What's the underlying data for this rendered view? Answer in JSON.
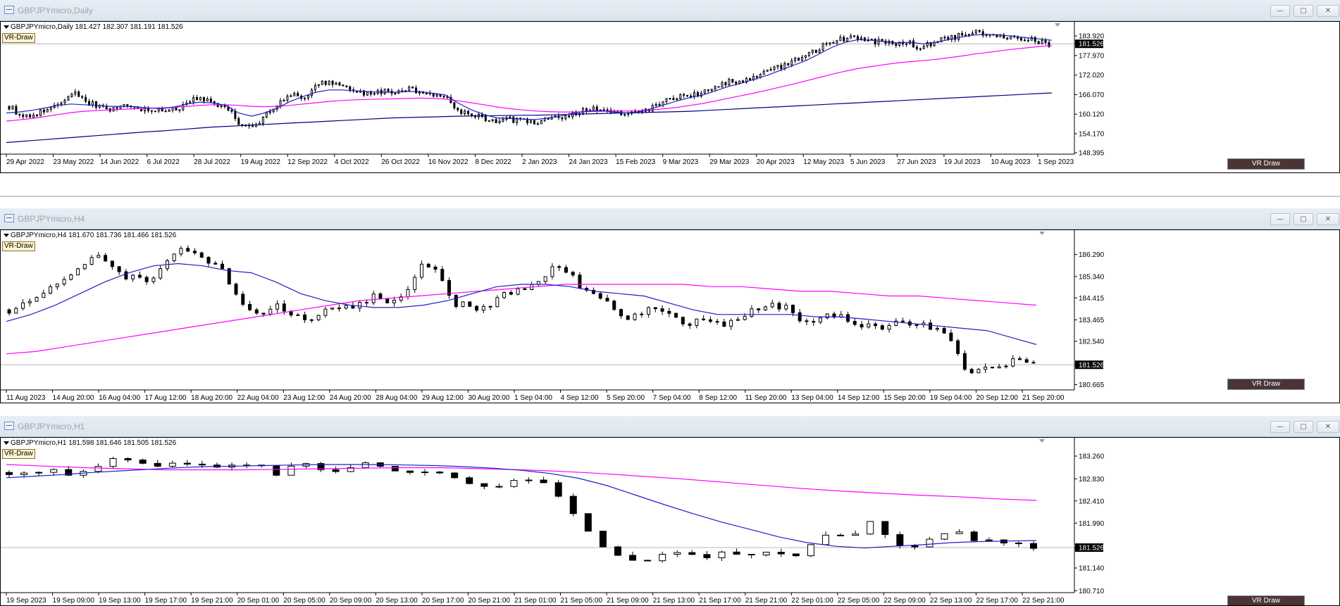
{
  "colors": {
    "ma_fast": "#1f1fcc",
    "ma_mid": "#ff00ff",
    "ma_slow": "#000080",
    "bull_candle": "#ffffff",
    "bear_candle": "#000000",
    "button_bg": "#4b3434"
  },
  "window_buttons": {
    "minimize": "—",
    "maximize": "▢",
    "close": "✕"
  },
  "windows": [
    {
      "title": "GBPJPYmicro,Daily",
      "info": "GBPJPYmicro,Daily  181.427 182.307 181.191 181.526",
      "indicator_label": "VR-Draw",
      "button_label": "VR Draw",
      "price_labels": [
        "183.920",
        "181.526",
        "177.970",
        "172.020",
        "166.070",
        "160.120",
        "154.170",
        "148.395"
      ],
      "current_price": "181.526",
      "time_labels": [
        "29 Apr 2022",
        "23 May 2022",
        "14 Jun 2022",
        "6 Jul 2022",
        "28 Jul 2022",
        "19 Aug 2022",
        "12 Sep 2022",
        "4 Oct 2022",
        "26 Oct 2022",
        "16 Nov 2022",
        "8 Dec 2022",
        "2 Jan 2023",
        "24 Jan 2023",
        "15 Feb 2023",
        "9 Mar 2023",
        "29 Mar 2023",
        "20 Apr 2023",
        "12 May 2023",
        "5 Jun 2023",
        "27 Jun 2023",
        "19 Jul 2023",
        "10 Aug 2023",
        "1 Sep 2023"
      ],
      "chart_data": {
        "type": "candlestick",
        "x_dates": [
          "29 Apr 2022",
          "23 May 2022",
          "14 Jun 2022",
          "6 Jul 2022",
          "28 Jul 2022",
          "19 Aug 2022",
          "12 Sep 2022",
          "4 Oct 2022",
          "26 Oct 2022",
          "16 Nov 2022",
          "8 Dec 2022",
          "2 Jan 2023",
          "24 Jan 2023",
          "15 Feb 2023",
          "9 Mar 2023",
          "29 Mar 2023",
          "20 Apr 2023",
          "12 May 2023",
          "5 Jun 2023",
          "27 Jun 2023",
          "19 Jul 2023",
          "10 Aug 2023",
          "1 Sep 2023"
        ],
        "ylim": [
          148.395,
          186.5
        ],
        "close_path": [
          162.5,
          159.5,
          160.0,
          161.5,
          163.0,
          167.0,
          164.0,
          162.5,
          161.5,
          163.0,
          162.0,
          161.5,
          161.0,
          161.5,
          164.0,
          165.0,
          163.0,
          162.0,
          157.0,
          156.0,
          160.0,
          163.5,
          166.0,
          165.0,
          169.0,
          170.0,
          168.5,
          167.5,
          166.0,
          167.0,
          166.5,
          168.0,
          167.0,
          166.5,
          165.5,
          161.0,
          160.0,
          159.0,
          157.5,
          158.5,
          158.0,
          157.5,
          158.5,
          159.0,
          160.5,
          161.5,
          162.0,
          161.0,
          160.0,
          160.5,
          162.0,
          164.0,
          165.0,
          166.0,
          166.5,
          168.0,
          170.0,
          170.5,
          171.5,
          173.0,
          174.5,
          176.5,
          178.0,
          180.0,
          182.0,
          183.0,
          183.5,
          182.5,
          182.0,
          181.5,
          182.0,
          180.0,
          182.0,
          183.0,
          184.0,
          185.0,
          184.5,
          184.0,
          183.5,
          183.0,
          182.5,
          181.5
        ],
        "ma_fast": [
          160.5,
          160.8,
          161.3,
          162.0,
          162.8,
          163.2,
          163.0,
          162.8,
          162.5,
          162.5,
          162.4,
          162.0,
          161.8,
          162.3,
          163.2,
          163.8,
          163.5,
          162.8,
          160.5,
          159.5,
          160.5,
          162.0,
          164.0,
          165.5,
          166.8,
          167.5,
          167.5,
          167.2,
          167.0,
          166.8,
          166.8,
          167.0,
          167.0,
          166.5,
          166.0,
          163.5,
          161.5,
          160.0,
          159.0,
          158.8,
          158.6,
          158.5,
          159.0,
          159.6,
          160.5,
          161.0,
          161.2,
          160.8,
          160.5,
          160.8,
          161.8,
          163.0,
          164.2,
          165.2,
          166.0,
          167.3,
          168.6,
          169.6,
          170.8,
          172.0,
          173.5,
          175.0,
          176.5,
          178.5,
          180.5,
          182.0,
          182.8,
          182.6,
          182.2,
          181.8,
          182.0,
          181.5,
          182.0,
          182.8,
          183.6,
          184.2,
          184.4,
          184.2,
          183.8,
          183.4,
          183.0,
          182.6
        ],
        "ma_mid": [
          158.0,
          158.4,
          158.8,
          159.4,
          160.0,
          160.6,
          161.0,
          161.2,
          161.4,
          161.6,
          161.8,
          161.9,
          162.0,
          162.2,
          162.5,
          162.8,
          163.0,
          163.0,
          162.8,
          162.5,
          162.4,
          162.5,
          162.8,
          163.2,
          163.6,
          164.0,
          164.3,
          164.5,
          164.6,
          164.7,
          164.8,
          164.9,
          165.0,
          164.9,
          164.7,
          164.2,
          163.6,
          163.0,
          162.3,
          161.8,
          161.4,
          161.1,
          160.9,
          160.8,
          160.8,
          160.9,
          161.0,
          161.1,
          161.1,
          161.2,
          161.4,
          161.8,
          162.2,
          162.8,
          163.4,
          164.2,
          165.0,
          165.8,
          166.6,
          167.5,
          168.4,
          169.3,
          170.3,
          171.3,
          172.3,
          173.2,
          174.0,
          174.6,
          175.2,
          175.7,
          176.1,
          176.4,
          176.8,
          177.3,
          177.8,
          178.4,
          178.9,
          179.4,
          179.9,
          180.3,
          180.7,
          181.0
        ],
        "ma_slow": [
          151.5,
          151.8,
          152.1,
          152.4,
          152.7,
          153.0,
          153.3,
          153.6,
          153.9,
          154.2,
          154.5,
          154.8,
          155.0,
          155.3,
          155.6,
          155.9,
          156.2,
          156.4,
          156.6,
          156.8,
          157.0,
          157.2,
          157.4,
          157.6,
          157.8,
          158.0,
          158.2,
          158.4,
          158.6,
          158.8,
          159.0,
          159.1,
          159.2,
          159.3,
          159.4,
          159.5,
          159.6,
          159.6,
          159.7,
          159.7,
          159.8,
          159.8,
          159.9,
          160.0,
          160.1,
          160.2,
          160.3,
          160.4,
          160.5,
          160.6,
          160.7,
          160.8,
          160.9,
          161.0,
          161.2,
          161.4,
          161.6,
          161.8,
          162.0,
          162.2,
          162.4,
          162.6,
          162.8,
          163.0,
          163.2,
          163.4,
          163.6,
          163.8,
          164.0,
          164.2,
          164.4,
          164.6,
          164.8,
          165.0,
          165.2,
          165.4,
          165.6,
          165.8,
          166.0,
          166.2,
          166.4,
          166.6
        ]
      }
    },
    {
      "title": "GBPJPYmicro,H4",
      "info": "GBPJPYmicro,H4  181.670 181.736 181.466 181.526",
      "indicator_label": "VR-Draw",
      "button_label": "VR Draw",
      "price_labels": [
        "186.290",
        "185.340",
        "184.415",
        "183.465",
        "182.540",
        "181.526",
        "180.665"
      ],
      "current_price": "181.526",
      "time_labels": [
        "11 Aug 2023",
        "14 Aug 20:00",
        "16 Aug 04:00",
        "17 Aug 12:00",
        "18 Aug 20:00",
        "22 Aug 04:00",
        "23 Aug 12:00",
        "24 Aug 20:00",
        "28 Aug 04:00",
        "29 Aug 12:00",
        "30 Aug 20:00",
        "1 Sep 04:00",
        "4 Sep 12:00",
        "5 Sep 20:00",
        "7 Sep 04:00",
        "8 Sep 12:00",
        "11 Sep 20:00",
        "13 Sep 04:00",
        "14 Sep 12:00",
        "15 Sep 20:00",
        "19 Sep 04:00",
        "20 Sep 12:00",
        "21 Sep 20:00"
      ],
      "chart_data": {
        "type": "candlestick",
        "x_dates": [
          "11 Aug 2023",
          "14 Aug 20:00",
          "16 Aug 04:00",
          "17 Aug 12:00",
          "18 Aug 20:00",
          "22 Aug 04:00",
          "23 Aug 12:00",
          "24 Aug 20:00",
          "28 Aug 04:00",
          "29 Aug 12:00",
          "30 Aug 20:00",
          "1 Sep 04:00",
          "4 Sep 12:00",
          "5 Sep 20:00",
          "7 Sep 04:00",
          "8 Sep 12:00",
          "11 Sep 20:00",
          "13 Sep 04:00",
          "14 Sep 12:00",
          "15 Sep 20:00",
          "19 Sep 04:00",
          "20 Sep 12:00",
          "21 Sep 20:00"
        ],
        "ylim": [
          180.5,
          187.1
        ],
        "close_path": [
          183.9,
          184.2,
          184.6,
          185.1,
          185.6,
          186.2,
          186.0,
          185.3,
          185.2,
          185.4,
          186.4,
          186.5,
          186.1,
          185.5,
          184.2,
          183.7,
          184.1,
          183.8,
          183.5,
          183.8,
          184.1,
          184.0,
          184.5,
          184.3,
          184.7,
          186.0,
          185.4,
          184.2,
          184.0,
          184.1,
          184.6,
          184.9,
          185.0,
          185.8,
          185.4,
          184.6,
          184.5,
          183.5,
          183.6,
          184.0,
          183.6,
          183.3,
          183.5,
          183.2,
          183.5,
          184.0,
          184.1,
          184.0,
          183.3,
          183.6,
          183.7,
          183.3,
          183.2,
          183.2,
          183.4,
          183.2,
          183.2,
          182.7,
          181.2,
          181.3,
          181.5,
          181.7,
          181.5
        ],
        "ma_fast": [
          183.4,
          183.7,
          184.1,
          184.6,
          185.1,
          185.5,
          185.8,
          185.9,
          185.8,
          185.6,
          185.5,
          185.1,
          184.6,
          184.3,
          184.1,
          184.0,
          184.0,
          184.1,
          184.3,
          184.6,
          184.9,
          185.0,
          185.0,
          184.9,
          184.7,
          184.6,
          184.5,
          184.2,
          183.9,
          183.7,
          183.7,
          183.7,
          183.7,
          183.6,
          183.6,
          183.5,
          183.4,
          183.3,
          183.2,
          183.1,
          183.0,
          182.7,
          182.4
        ],
        "ma_mid": [
          182.0,
          182.1,
          182.3,
          182.5,
          182.7,
          182.9,
          183.1,
          183.3,
          183.5,
          183.7,
          183.9,
          184.1,
          184.3,
          184.4,
          184.5,
          184.6,
          184.7,
          184.8,
          184.9,
          185.0,
          185.0,
          185.0,
          185.0,
          185.0,
          184.9,
          184.9,
          184.8,
          184.7,
          184.7,
          184.6,
          184.5,
          184.5,
          184.4,
          184.3,
          184.2,
          184.1
        ]
      }
    },
    {
      "title": "GBPJPYmicro,H1",
      "info": "GBPJPYmicro,H1  181.598 181.646 181.505 181.526",
      "indicator_label": "VR-Draw",
      "button_label": "VR Draw",
      "price_labels": [
        "183.260",
        "182.830",
        "182.410",
        "181.990",
        "181.526",
        "181.140",
        "180.710"
      ],
      "current_price": "181.526",
      "time_labels": [
        "19 Sep 2023",
        "19 Sep 09:00",
        "19 Sep 13:00",
        "19 Sep 17:00",
        "19 Sep 21:00",
        "20 Sep 01:00",
        "20 Sep 05:00",
        "20 Sep 09:00",
        "20 Sep 13:00",
        "20 Sep 17:00",
        "20 Sep 21:00",
        "21 Sep 01:00",
        "21 Sep 05:00",
        "21 Sep 09:00",
        "21 Sep 13:00",
        "21 Sep 17:00",
        "21 Sep 21:00",
        "22 Sep 01:00",
        "22 Sep 05:00",
        "22 Sep 09:00",
        "22 Sep 13:00",
        "22 Sep 17:00",
        "22 Sep 21:00"
      ],
      "chart_data": {
        "type": "candlestick",
        "x_dates": [
          "19 Sep 2023",
          "19 Sep 09:00",
          "19 Sep 13:00",
          "19 Sep 17:00",
          "19 Sep 21:00",
          "20 Sep 01:00",
          "20 Sep 05:00",
          "20 Sep 09:00",
          "20 Sep 13:00",
          "20 Sep 17:00",
          "20 Sep 21:00",
          "21 Sep 01:00",
          "21 Sep 05:00",
          "21 Sep 09:00",
          "21 Sep 13:00",
          "21 Sep 17:00",
          "21 Sep 21:00",
          "22 Sep 01:00",
          "22 Sep 05:00",
          "22 Sep 09:00",
          "22 Sep 13:00",
          "22 Sep 17:00",
          "22 Sep 21:00"
        ],
        "ylim": [
          180.7,
          183.5
        ],
        "close_path": [
          182.95,
          182.93,
          182.97,
          183.02,
          182.9,
          183.0,
          183.1,
          183.25,
          183.18,
          183.1,
          183.06,
          183.1,
          183.15,
          183.12,
          183.08,
          183.05,
          183.1,
          183.12,
          182.8,
          183.12,
          183.1,
          182.92,
          183.0,
          183.08,
          183.15,
          183.0,
          182.9,
          183.05,
          182.95,
          182.88,
          182.8,
          182.7,
          182.6,
          182.75,
          182.82,
          182.8,
          182.65,
          182.3,
          182.05,
          181.6,
          181.5,
          181.3,
          181.2,
          181.35,
          181.45,
          181.48,
          181.35,
          181.4,
          181.45,
          181.4,
          181.48,
          181.4,
          181.3,
          181.55,
          181.75,
          181.8,
          181.75,
          182.05,
          181.8,
          181.6,
          181.55,
          181.7,
          181.75,
          181.85,
          181.65,
          181.65,
          181.6,
          181.6,
          181.55
        ],
        "ma_fast": [
          182.85,
          182.88,
          182.91,
          182.95,
          182.98,
          183.01,
          183.04,
          183.06,
          183.07,
          183.08,
          183.09,
          183.1,
          183.1,
          183.1,
          183.09,
          183.08,
          183.06,
          183.03,
          182.99,
          182.93,
          182.84,
          182.7,
          182.52,
          182.34,
          182.17,
          182.01,
          181.87,
          181.73,
          181.62,
          181.55,
          181.52,
          181.55,
          181.58,
          181.62,
          181.64,
          181.65,
          181.66
        ],
        "ma_mid": [
          183.1,
          183.07,
          183.04,
          183.02,
          183.0,
          183.0,
          183.0,
          183.01,
          183.02,
          183.03,
          183.04,
          183.04,
          183.02,
          183.0,
          182.97,
          182.93,
          182.88,
          182.83,
          182.77,
          182.71,
          182.65,
          182.6,
          182.56,
          182.52,
          182.49,
          182.45,
          182.42
        ]
      }
    }
  ]
}
